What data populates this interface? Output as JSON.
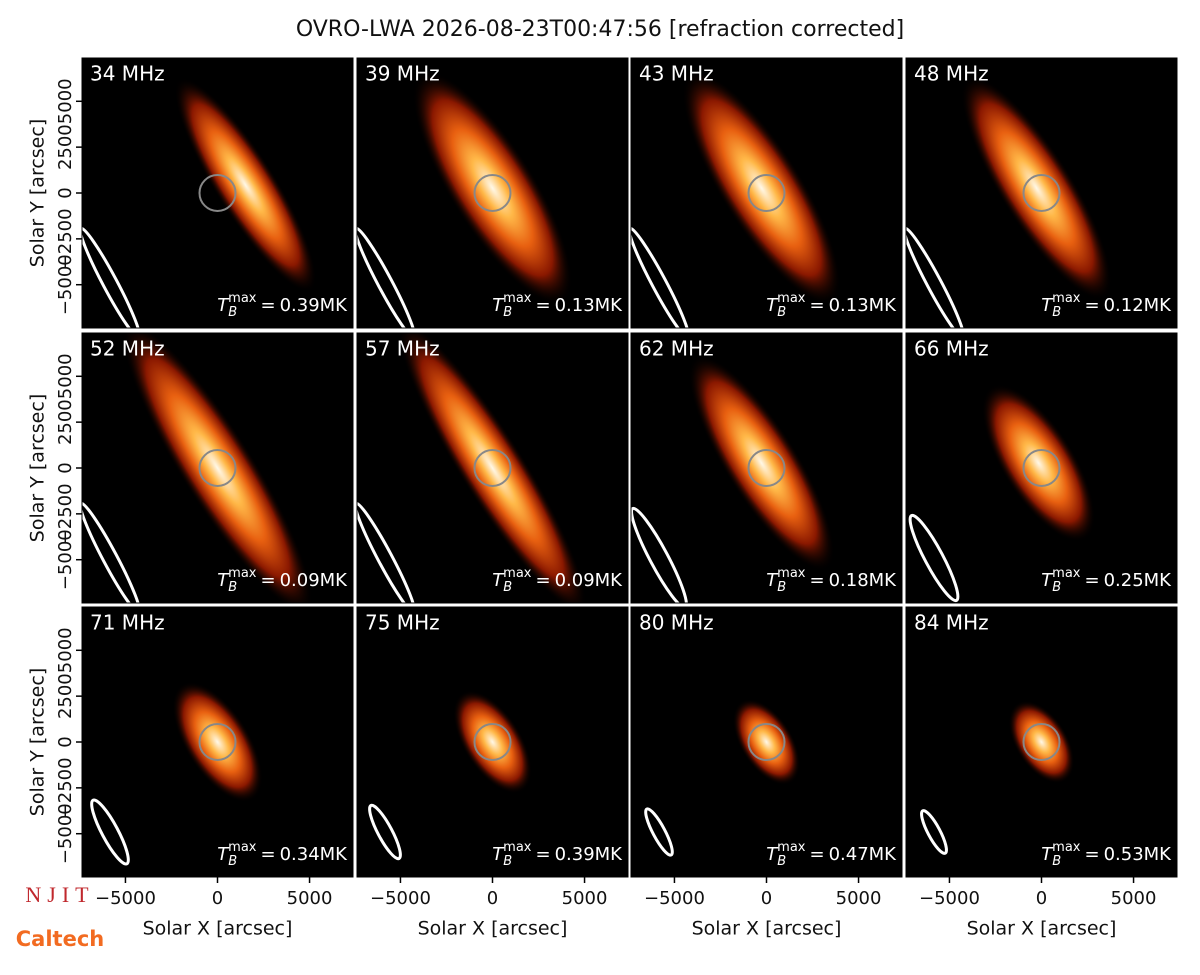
{
  "chart_data": {
    "type": "image-grid",
    "title": "OVRO-LWA 2026-08-23T00:47:56 [refraction corrected]",
    "xlabel": "Solar X [arcsec]",
    "ylabel": "Solar Y [arcsec]",
    "xlim": [
      -7360,
      7360
    ],
    "ylim": [
      -7360,
      7360
    ],
    "xticks": [
      {
        "value": -5000,
        "label": "−5000"
      },
      0,
      5000
    ],
    "yticks": [
      {
        "value": -5000,
        "label": "−5000"
      },
      {
        "value": -2500,
        "label": "−2500"
      },
      0,
      2500,
      5000
    ],
    "annotation": {
      "symbol": "T",
      "subscript": "B",
      "superscript": "max",
      "prefix": "="
    },
    "panels": [
      {
        "label": "34 MHz",
        "tb_max": "0.39MK"
      },
      {
        "label": "39 MHz",
        "tb_max": "0.13MK"
      },
      {
        "label": "43 MHz",
        "tb_max": "0.13MK"
      },
      {
        "label": "48 MHz",
        "tb_max": "0.12MK"
      },
      {
        "label": "52 MHz",
        "tb_max": "0.09MK"
      },
      {
        "label": "57 MHz",
        "tb_max": "0.09MK"
      },
      {
        "label": "62 MHz",
        "tb_max": "0.18MK"
      },
      {
        "label": "66 MHz",
        "tb_max": "0.25MK"
      },
      {
        "label": "71 MHz",
        "tb_max": "0.34MK"
      },
      {
        "label": "75 MHz",
        "tb_max": "0.39MK"
      },
      {
        "label": "80 MHz",
        "tb_max": "0.47MK"
      },
      {
        "label": "84 MHz",
        "tb_max": "0.53MK"
      }
    ]
  },
  "logos": [
    "NJIT",
    "Caltech"
  ]
}
